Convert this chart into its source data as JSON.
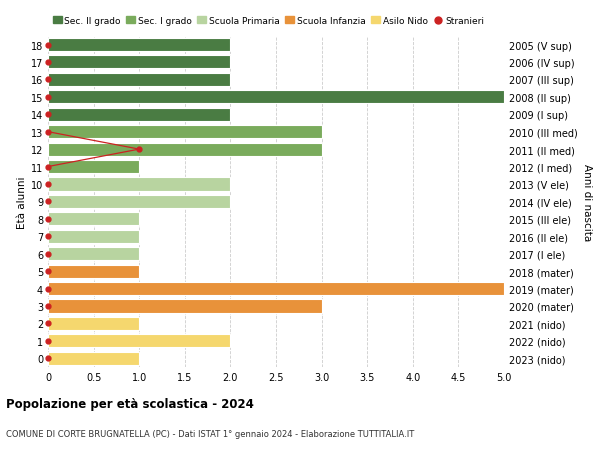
{
  "ages": [
    0,
    1,
    2,
    3,
    4,
    5,
    6,
    7,
    8,
    9,
    10,
    11,
    12,
    13,
    14,
    15,
    16,
    17,
    18
  ],
  "right_labels": [
    "2023 (nido)",
    "2022 (nido)",
    "2021 (nido)",
    "2020 (mater)",
    "2019 (mater)",
    "2018 (mater)",
    "2017 (I ele)",
    "2016 (II ele)",
    "2015 (III ele)",
    "2014 (IV ele)",
    "2013 (V ele)",
    "2012 (I med)",
    "2011 (II med)",
    "2010 (III med)",
    "2009 (I sup)",
    "2008 (II sup)",
    "2007 (III sup)",
    "2006 (IV sup)",
    "2005 (V sup)"
  ],
  "bar_values": [
    1,
    2,
    1,
    3,
    5,
    1,
    1,
    1,
    1,
    2,
    2,
    1,
    3,
    3,
    2,
    5,
    2,
    2,
    2
  ],
  "bar_colors": [
    "#f5d76e",
    "#f5d76e",
    "#f5d76e",
    "#e8923a",
    "#e8923a",
    "#e8923a",
    "#b8d4a0",
    "#b8d4a0",
    "#b8d4a0",
    "#b8d4a0",
    "#b8d4a0",
    "#7aab5c",
    "#7aab5c",
    "#7aab5c",
    "#4a7c43",
    "#4a7c43",
    "#4a7c43",
    "#4a7c43",
    "#4a7c43"
  ],
  "stranieri_x": [
    0,
    0,
    0,
    0,
    0,
    0,
    0,
    0,
    0,
    0,
    0,
    0,
    1,
    0,
    0,
    0,
    0,
    0,
    0
  ],
  "stranieri_line_ages": [
    11,
    12,
    13
  ],
  "stranieri_line_x": [
    0,
    1,
    0
  ],
  "legend_labels": [
    "Sec. II grado",
    "Sec. I grado",
    "Scuola Primaria",
    "Scuola Infanzia",
    "Asilo Nido",
    "Stranieri"
  ],
  "legend_colors": [
    "#4a7c43",
    "#7aab5c",
    "#b8d4a0",
    "#e8923a",
    "#f5d76e",
    "#cc2222"
  ],
  "ylabel": "Età alunni",
  "right_ylabel": "Anni di nascita",
  "title": "Popolazione per età scolastica - 2024",
  "subtitle": "COMUNE DI CORTE BRUGNATELLA (PC) - Dati ISTAT 1° gennaio 2024 - Elaborazione TUTTITALIA.IT",
  "xlim": [
    0,
    5.0
  ],
  "xticks": [
    0,
    0.5,
    1.0,
    1.5,
    2.0,
    2.5,
    3.0,
    3.5,
    4.0,
    4.5,
    5.0
  ],
  "xtick_labels": [
    "0",
    "0.5",
    "1.0",
    "1.5",
    "2.0",
    "2.5",
    "3.0",
    "3.5",
    "4.0",
    "4.5",
    "5.0"
  ],
  "bar_height": 0.75,
  "background_color": "#ffffff",
  "grid_color": "#cccccc",
  "stranieri_color": "#cc2222"
}
